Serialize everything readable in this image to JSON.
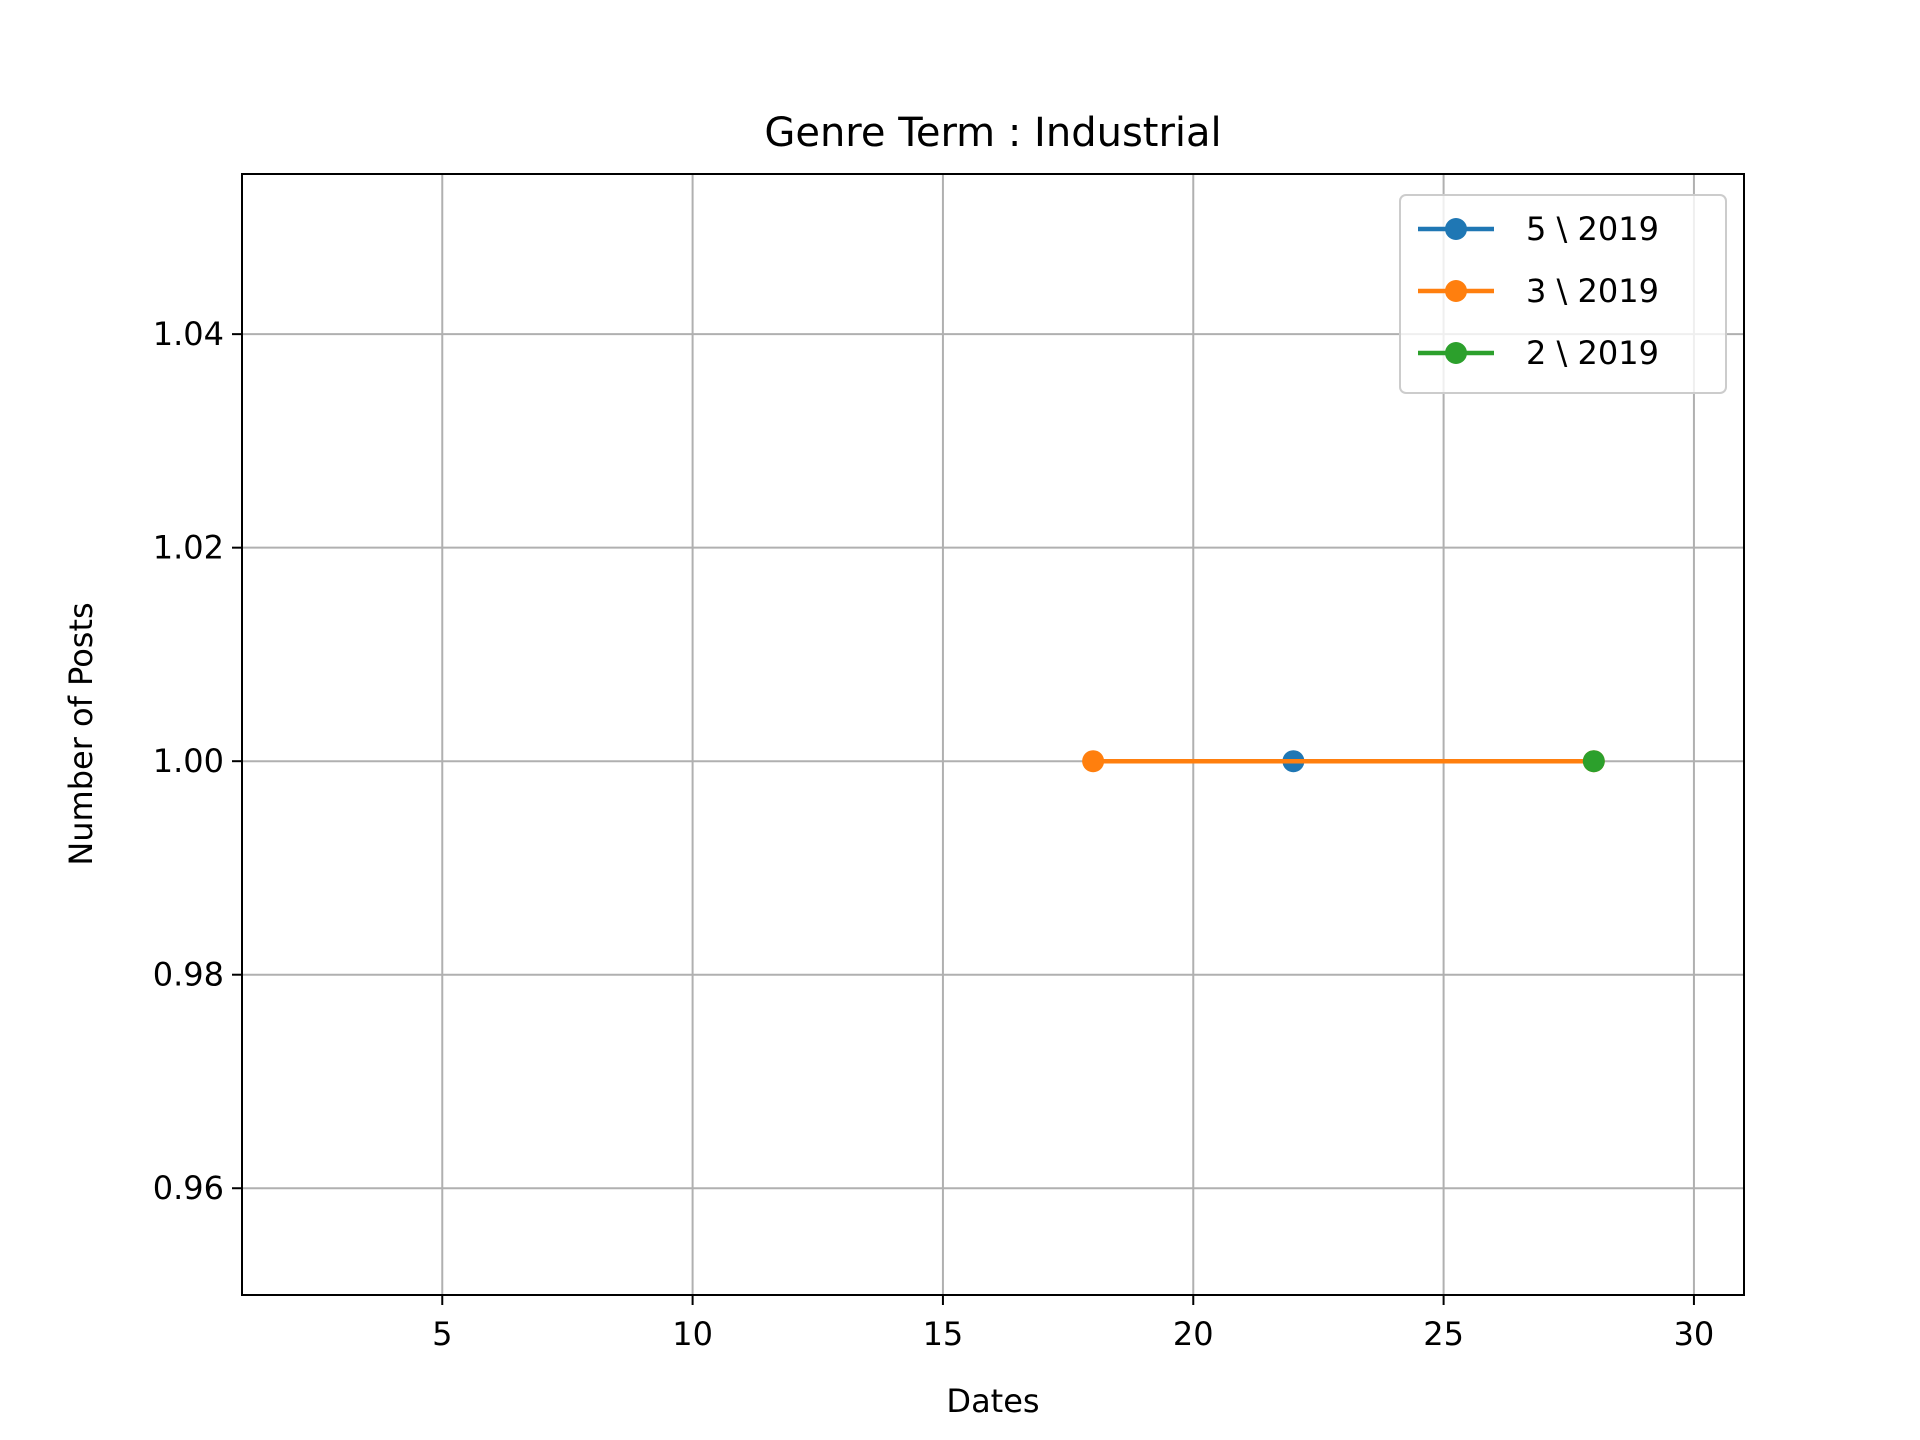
{
  "chart_data": {
    "type": "line",
    "title": "Genre Term : Industrial",
    "xlabel": "Dates",
    "ylabel": "Number of Posts",
    "xlim": [
      1,
      31
    ],
    "ylim": [
      0.95,
      1.055
    ],
    "xticks": [
      5,
      10,
      15,
      20,
      25,
      30
    ],
    "yticks": [
      0.96,
      0.98,
      1.0,
      1.02,
      1.04
    ],
    "ytick_labels": [
      "0.96",
      "0.98",
      "1.00",
      "1.02",
      "1.04"
    ],
    "grid": true,
    "legend_position": "top-right",
    "series": [
      {
        "name": "5 \\ 2019",
        "color": "#1f77b4",
        "x": [
          22
        ],
        "y": [
          1.0
        ]
      },
      {
        "name": "3 \\ 2019",
        "color": "#ff7f0e",
        "x": [
          18,
          28
        ],
        "y": [
          1.0,
          1.0
        ]
      },
      {
        "name": "2 \\ 2019",
        "color": "#2ca02c",
        "x": [
          28
        ],
        "y": [
          1.0
        ]
      }
    ]
  }
}
